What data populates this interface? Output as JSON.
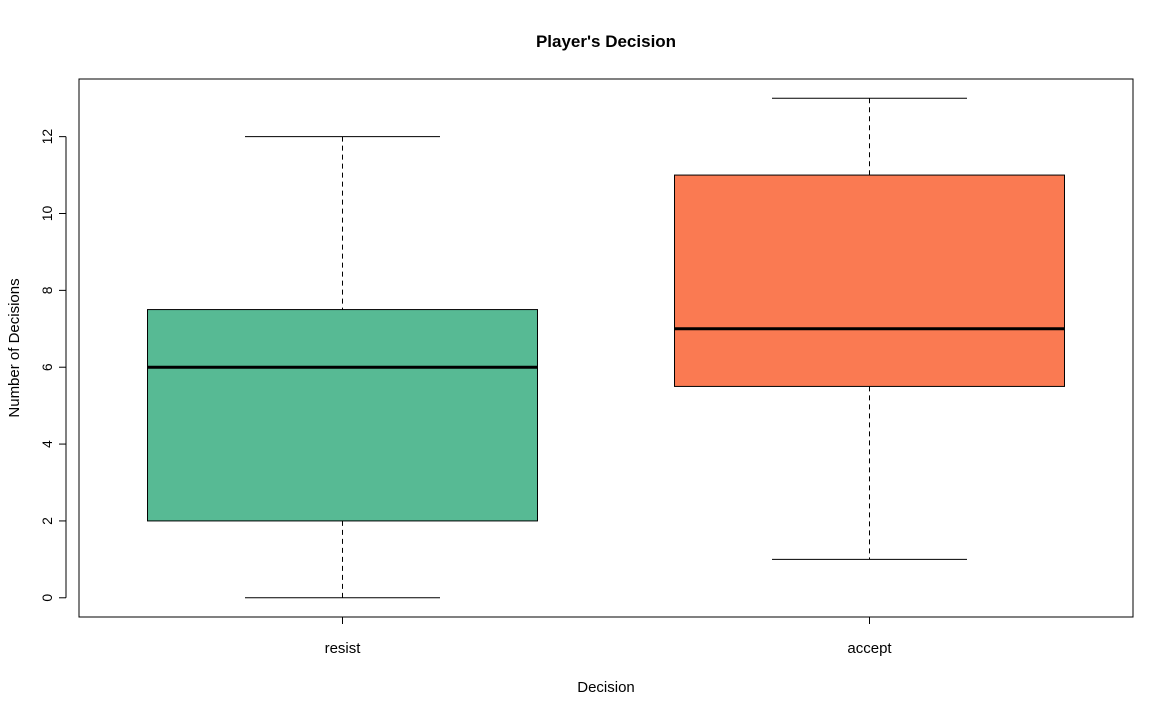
{
  "chart_data": {
    "type": "box",
    "title": "Player's Decision",
    "xlabel": "Decision",
    "ylabel": "Number of Decisions",
    "ylim": [
      -0.5,
      13.5
    ],
    "yticks": [
      0,
      2,
      4,
      6,
      8,
      10,
      12
    ],
    "grid": false,
    "legend": "none",
    "categories": [
      "resist",
      "accept"
    ],
    "boxes": [
      {
        "category": "resist",
        "min": 0,
        "q1": 2,
        "median": 6,
        "q3": 7.5,
        "max": 12,
        "color": "#57BA94"
      },
      {
        "category": "accept",
        "min": 1,
        "q1": 5.5,
        "median": 7,
        "q3": 11,
        "max": 13,
        "color": "#FA7A52"
      }
    ]
  }
}
